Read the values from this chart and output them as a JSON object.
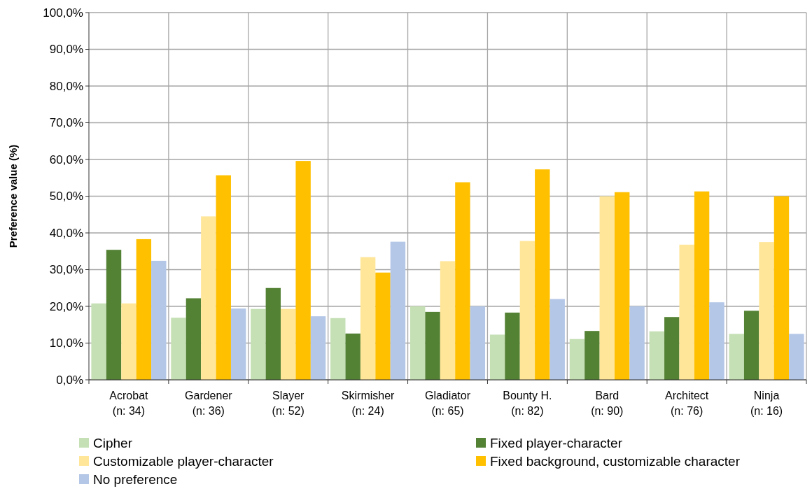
{
  "chart_data": {
    "type": "bar",
    "ylabel": "Preference value (%)",
    "categories": [
      "Acrobat\n(n: 34)",
      "Gardener\n(n: 36)",
      "Slayer\n(n: 52)",
      "Skirmisher\n(n: 24)",
      "Gladiator\n(n: 65)",
      "Bounty H.\n(n: 82)",
      "Bard\n(n: 90)",
      "Architect\n(n: 76)",
      "Ninja\n(n: 16)"
    ],
    "series": [
      {
        "name": "Cipher",
        "color": "#c5e0b4",
        "values": [
          20.8,
          16.9,
          19.3,
          16.8,
          20.0,
          12.3,
          11.1,
          13.2,
          12.5
        ]
      },
      {
        "name": "Fixed player-character",
        "color": "#548235",
        "values": [
          35.4,
          22.2,
          25.0,
          12.6,
          18.5,
          18.3,
          13.3,
          17.1,
          18.8
        ]
      },
      {
        "name": "Customizable player-character",
        "color": "#ffe699",
        "values": [
          20.8,
          44.5,
          19.3,
          33.4,
          32.3,
          37.8,
          50.0,
          36.8,
          37.5
        ]
      },
      {
        "name": "Fixed background, customizable character",
        "color": "#ffc000",
        "values": [
          38.3,
          55.7,
          59.6,
          29.2,
          53.8,
          57.3,
          51.1,
          51.3,
          50.0
        ]
      },
      {
        "name": "No preference",
        "color": "#b4c7e7",
        "values": [
          32.4,
          19.4,
          17.3,
          37.6,
          20.0,
          22.0,
          20.0,
          21.1,
          12.5
        ]
      }
    ],
    "ylim": [
      0,
      100
    ],
    "yticks": [
      {
        "value": 0,
        "label": "0,0%"
      },
      {
        "value": 10,
        "label": "10,0%"
      },
      {
        "value": 20,
        "label": "20,0%"
      },
      {
        "value": 30,
        "label": "30,0%"
      },
      {
        "value": 40,
        "label": "40,0%"
      },
      {
        "value": 50,
        "label": "50,0%"
      },
      {
        "value": 60,
        "label": "60,0%"
      },
      {
        "value": 70,
        "label": "70,0%"
      },
      {
        "value": 80,
        "label": "80,0%"
      },
      {
        "value": 90,
        "label": "90,0%"
      },
      {
        "value": 100,
        "label": "100,0%"
      }
    ],
    "grid": true,
    "legend": "bottom"
  }
}
